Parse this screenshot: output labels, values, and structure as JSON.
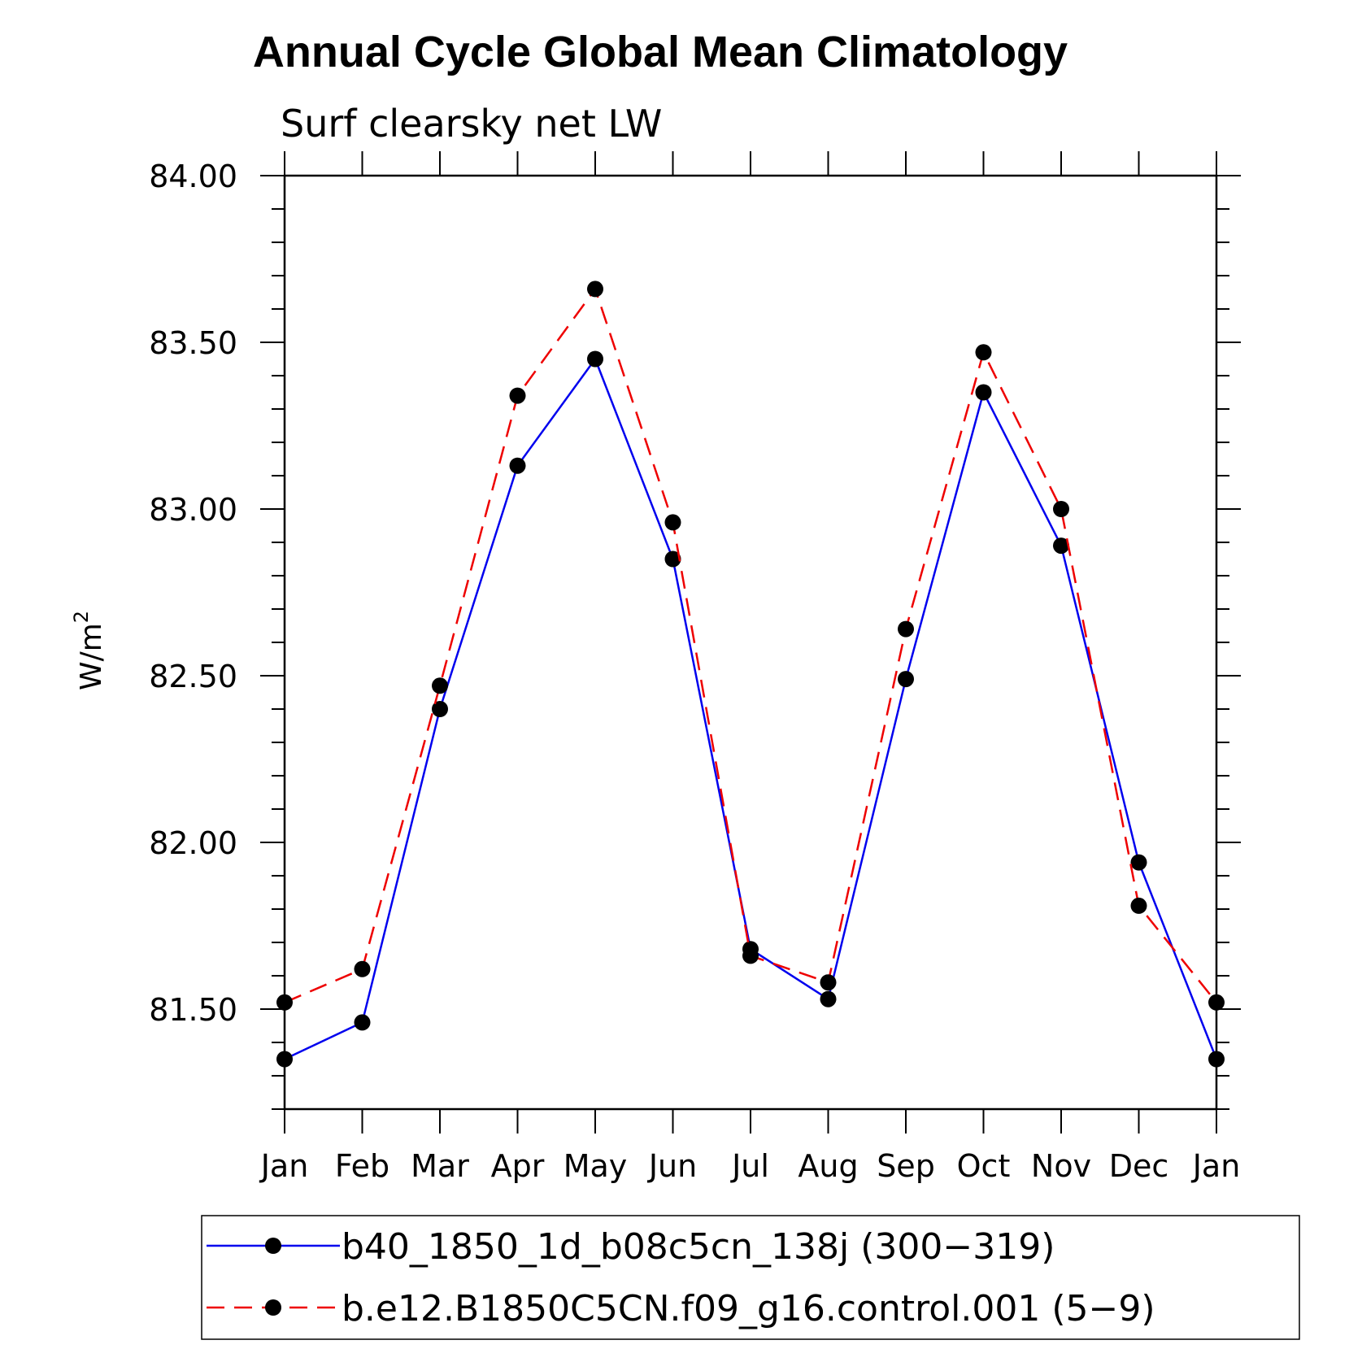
{
  "chart_data": {
    "type": "line",
    "title": "Annual Cycle Global Mean Climatology",
    "subtitle": "Surf clearsky net LW",
    "ylabel": "W/m",
    "ylabel_superscript": "2",
    "xlabel": "",
    "categories": [
      "Jan",
      "Feb",
      "Mar",
      "Apr",
      "May",
      "Jun",
      "Jul",
      "Aug",
      "Sep",
      "Oct",
      "Nov",
      "Dec",
      "Jan"
    ],
    "ylim": [
      81.2,
      84.0
    ],
    "yticks": [
      81.5,
      82.0,
      82.5,
      83.0,
      83.5,
      84.0
    ],
    "ytick_labels": [
      "81.50",
      "82.00",
      "82.50",
      "83.00",
      "83.50",
      "84.00"
    ],
    "legend_position": "bottom",
    "series": [
      {
        "name": "b40_1850_1d_b08c5cn_138j (300−319)",
        "color": "#0000ee",
        "style": "solid",
        "values": [
          81.35,
          81.46,
          82.4,
          83.13,
          83.45,
          82.85,
          81.68,
          81.53,
          82.49,
          83.35,
          82.89,
          81.94,
          81.35
        ]
      },
      {
        "name": "b.e12.B1850C5CN.f09_g16.control.001 (5−9)",
        "color": "#ee0000",
        "style": "dashed",
        "values": [
          81.52,
          81.62,
          82.47,
          83.34,
          83.66,
          82.96,
          81.66,
          81.58,
          82.64,
          83.47,
          83.0,
          81.81,
          81.52
        ]
      }
    ]
  }
}
